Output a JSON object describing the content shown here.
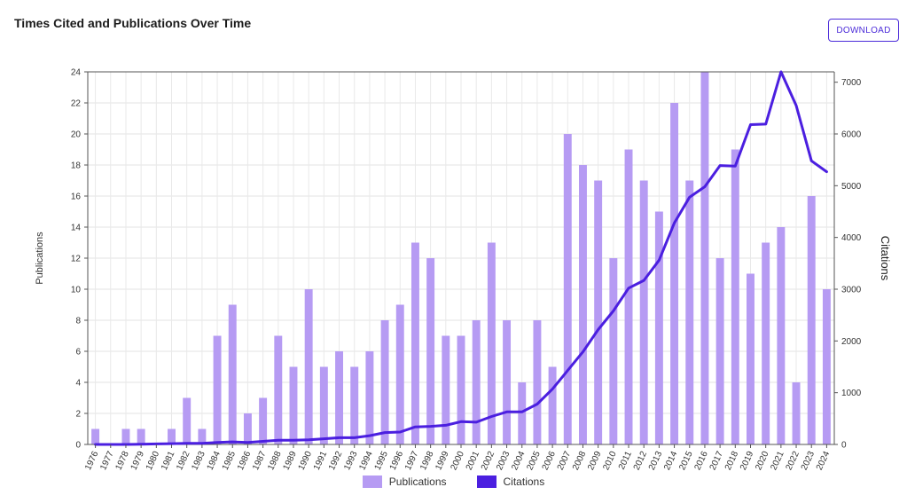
{
  "title": "Times Cited and Publications Over Time",
  "download_label": "DOWNLOAD",
  "chart_data": {
    "type": "bar",
    "title": "Times Cited and Publications Over Time",
    "xlabel": "",
    "categories": [
      "1976",
      "1977",
      "1978",
      "1979",
      "1980",
      "1981",
      "1982",
      "1983",
      "1984",
      "1985",
      "1986",
      "1987",
      "1988",
      "1989",
      "1990",
      "1991",
      "1992",
      "1993",
      "1994",
      "1995",
      "1996",
      "1997",
      "1998",
      "1999",
      "2000",
      "2001",
      "2002",
      "2003",
      "2004",
      "2005",
      "2006",
      "2007",
      "2008",
      "2009",
      "2010",
      "2011",
      "2012",
      "2013",
      "2014",
      "2015",
      "2016",
      "2017",
      "2018",
      "2019",
      "2020",
      "2021",
      "2022",
      "2023",
      "2024"
    ],
    "series": [
      {
        "name": "Publications",
        "type": "bar",
        "axis": "left",
        "color": "#b69bf3",
        "values": [
          1,
          0,
          1,
          1,
          0,
          1,
          3,
          1,
          7,
          9,
          2,
          3,
          7,
          5,
          10,
          5,
          6,
          5,
          6,
          8,
          9,
          13,
          12,
          7,
          7,
          8,
          13,
          8,
          4,
          8,
          5,
          20,
          18,
          17,
          12,
          19,
          17,
          15,
          22,
          17,
          24,
          12,
          19,
          11,
          13,
          14,
          4,
          16,
          10
        ]
      },
      {
        "name": "Citations",
        "type": "line",
        "axis": "right",
        "color": "#4b1fe0",
        "values": [
          0,
          0,
          0,
          5,
          10,
          15,
          20,
          20,
          40,
          50,
          40,
          60,
          80,
          80,
          90,
          110,
          130,
          130,
          170,
          230,
          240,
          340,
          350,
          370,
          440,
          430,
          540,
          630,
          630,
          780,
          1070,
          1430,
          1790,
          2220,
          2580,
          3020,
          3170,
          3560,
          4280,
          4780,
          4980,
          5390,
          5380,
          6180,
          6190,
          7200,
          6550,
          5480,
          5270
        ]
      }
    ],
    "ylabel": "Publications",
    "ylim": [
      0,
      24
    ],
    "y_ticks": [
      0,
      2,
      4,
      6,
      8,
      10,
      12,
      14,
      16,
      18,
      20,
      22,
      24
    ],
    "y2label": "Citations",
    "y2lim": [
      0,
      7200
    ],
    "y2_ticks": [
      0,
      1000,
      2000,
      3000,
      4000,
      5000,
      6000,
      7000
    ],
    "grid": true,
    "legend_position": "bottom-center"
  }
}
